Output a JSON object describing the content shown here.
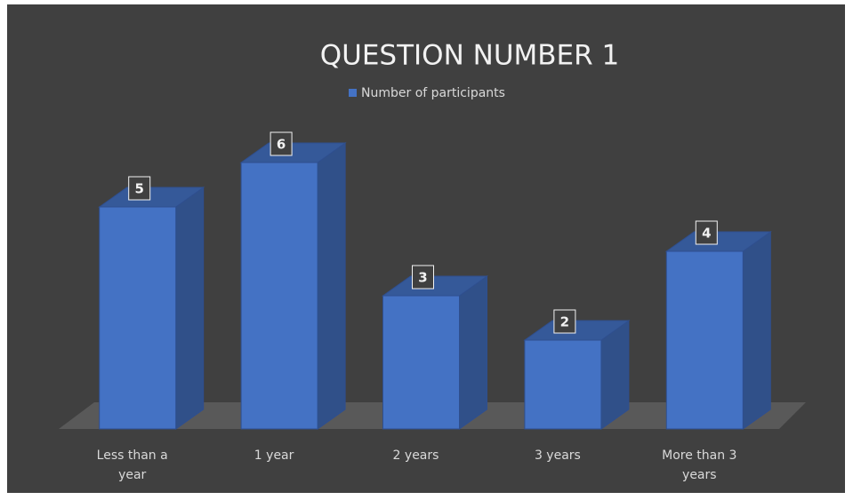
{
  "chart_data": {
    "type": "bar3d",
    "title": "QUESTION NUMBER 1",
    "categories": [
      "Less than a year",
      "1 year",
      "2 years",
      "3 years",
      "More than 3 years"
    ],
    "series": [
      {
        "name": "Number of participants",
        "color": "#4472c4",
        "values": [
          5,
          6,
          3,
          2,
          4
        ]
      }
    ],
    "ylim": [
      0,
      6
    ],
    "legend": "top",
    "data_labels": true
  }
}
